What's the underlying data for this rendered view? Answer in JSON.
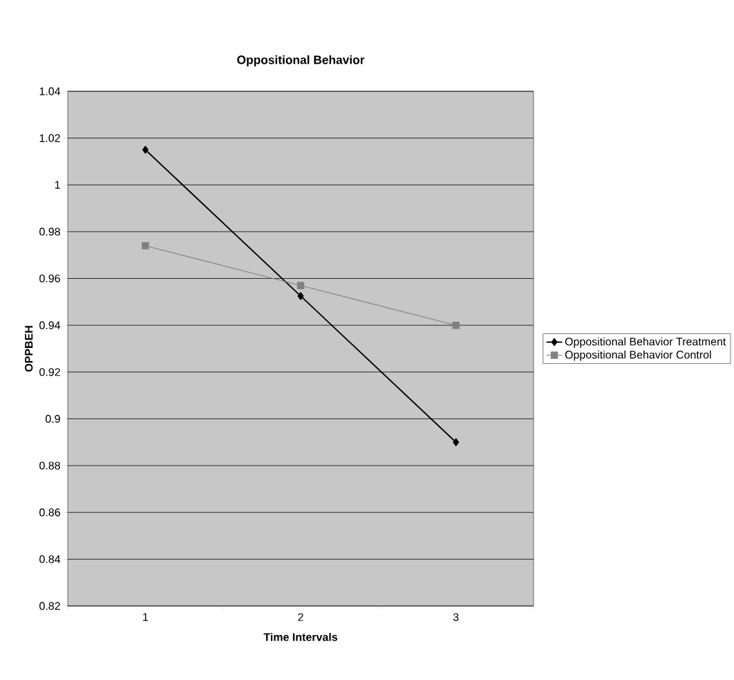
{
  "chart_data": {
    "type": "line",
    "title": "Oppositional Behavior",
    "xlabel": "Time Intervals",
    "ylabel": "OPPBEH",
    "categories": [
      "1",
      "2",
      "3"
    ],
    "series": [
      {
        "name": "Oppositional Behavior Treatment",
        "color": "#000000",
        "marker": "diamond",
        "values": [
          1.015,
          0.9525,
          0.89
        ]
      },
      {
        "name": "Oppositional Behavior Control",
        "color": "#808080",
        "marker": "square",
        "values": [
          0.974,
          0.957,
          0.94
        ]
      }
    ],
    "ylim": [
      0.82,
      1.04
    ],
    "yticks": [
      0.82,
      0.84,
      0.86,
      0.88,
      0.9,
      0.92,
      0.94,
      0.96,
      0.98,
      1,
      1.02,
      1.04
    ],
    "grid": "y",
    "legend": "right",
    "line_style": "solid"
  }
}
